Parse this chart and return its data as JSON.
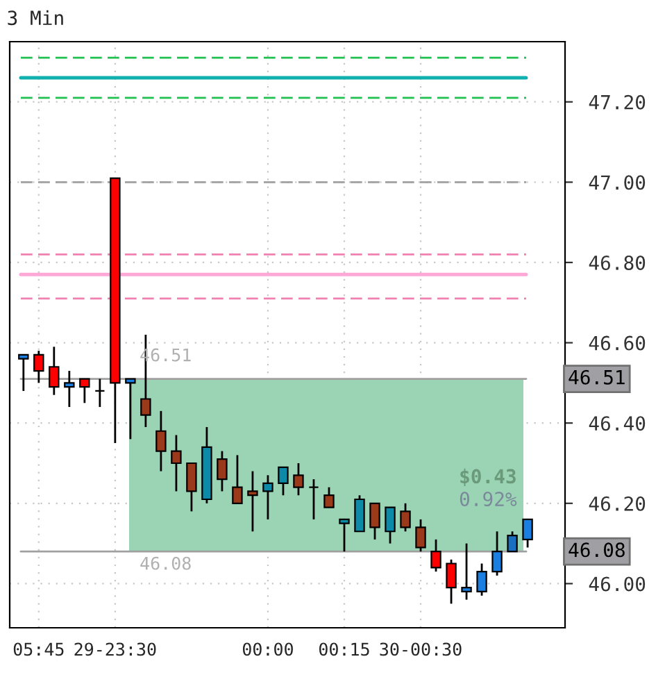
{
  "chart_data": {
    "type": "candlestick",
    "title": "3 Min",
    "categories": [
      null,
      "05:45",
      null,
      null,
      null,
      null,
      "29-23:30",
      null,
      null,
      null,
      null,
      null,
      null,
      null,
      null,
      null,
      "00:00",
      null,
      null,
      null,
      null,
      "00:15",
      null,
      null,
      null,
      null,
      "30-00:30",
      null,
      null,
      null,
      null,
      null,
      null,
      null
    ],
    "ohlc": [
      [
        46.56,
        46.57,
        46.48,
        46.57
      ],
      [
        46.57,
        46.58,
        46.5,
        46.53
      ],
      [
        46.54,
        46.59,
        46.47,
        46.49
      ],
      [
        46.49,
        46.53,
        46.44,
        46.5
      ],
      [
        46.51,
        46.51,
        46.45,
        46.49
      ],
      [
        46.48,
        46.51,
        46.44,
        46.48
      ],
      [
        47.01,
        47.01,
        46.35,
        46.5
      ],
      [
        46.5,
        46.51,
        46.36,
        46.51
      ],
      [
        46.46,
        46.62,
        46.39,
        46.42
      ],
      [
        46.38,
        46.43,
        46.28,
        46.33
      ],
      [
        46.33,
        46.37,
        46.23,
        46.3
      ],
      [
        46.3,
        46.3,
        46.18,
        46.23
      ],
      [
        46.21,
        46.39,
        46.2,
        46.34
      ],
      [
        46.31,
        46.33,
        46.23,
        46.26
      ],
      [
        46.24,
        46.32,
        46.2,
        46.2
      ],
      [
        46.23,
        46.28,
        46.13,
        46.22
      ],
      [
        46.23,
        46.27,
        46.16,
        46.25
      ],
      [
        46.25,
        46.29,
        46.22,
        46.29
      ],
      [
        46.27,
        46.3,
        46.22,
        46.24
      ],
      [
        46.24,
        46.26,
        46.16,
        46.24
      ],
      [
        46.22,
        46.24,
        46.19,
        46.19
      ],
      [
        46.15,
        46.16,
        46.08,
        46.16
      ],
      [
        46.13,
        46.22,
        46.13,
        46.21
      ],
      [
        46.2,
        46.2,
        46.11,
        46.14
      ],
      [
        46.13,
        46.19,
        46.1,
        46.19
      ],
      [
        46.18,
        46.2,
        46.13,
        46.14
      ],
      [
        46.14,
        46.16,
        46.08,
        46.09
      ],
      [
        46.08,
        46.11,
        46.03,
        46.04
      ],
      [
        46.05,
        46.06,
        45.95,
        45.99
      ],
      [
        45.98,
        46.1,
        45.96,
        45.99
      ],
      [
        45.98,
        46.05,
        45.97,
        46.03
      ],
      [
        46.03,
        46.13,
        46.02,
        46.08
      ],
      [
        46.08,
        46.13,
        46.08,
        46.12
      ],
      [
        46.11,
        46.16,
        46.09,
        46.16
      ]
    ],
    "colors": [
      "#1a7fe0",
      "#ff0000",
      "#ff0000",
      "#1a7fe0",
      "#ff0000",
      "#000000",
      "#ff0000",
      "#1a7fe0",
      "#9a3a1a",
      "#9a3a1a",
      "#9a3a1a",
      "#9a3a1a",
      "#0d8aa8",
      "#9a3a1a",
      "#9a3a1a",
      "#9a3a1a",
      "#0d8aa8",
      "#0d8aa8",
      "#9a3a1a",
      "#000000",
      "#9a3a1a",
      "#0d8aa8",
      "#0d8aa8",
      "#9a3a1a",
      "#0d8aa8",
      "#9a3a1a",
      "#9a3a1a",
      "#ff0000",
      "#ff0000",
      "#1a7fe0",
      "#1a7fe0",
      "#1a7fe0",
      "#1a6fc0",
      "#1a7fe0"
    ],
    "ylim": [
      45.89,
      47.35
    ],
    "yticks": [
      {
        "value": 46.0,
        "label": "46.00"
      },
      {
        "value": 46.2,
        "label": "46.20"
      },
      {
        "value": 46.4,
        "label": "46.40"
      },
      {
        "value": 46.6,
        "label": "46.60"
      },
      {
        "value": 46.8,
        "label": "46.80"
      },
      {
        "value": 47.0,
        "label": "47.00"
      },
      {
        "value": 47.2,
        "label": "47.20"
      }
    ],
    "grid": true,
    "ref_lines": [
      {
        "axis": "y",
        "value": 47.31,
        "color": "#20c050",
        "line_style": "dashed"
      },
      {
        "axis": "y",
        "value": 47.26,
        "color": "#10b0b0",
        "line_style": "solid"
      },
      {
        "axis": "y",
        "value": 47.21,
        "color": "#20c050",
        "line_style": "dashed"
      },
      {
        "axis": "y",
        "value": 47.0,
        "color": "#a0a0a0",
        "line_style": "dashed"
      },
      {
        "axis": "y",
        "value": 46.82,
        "color": "#f080b0",
        "line_style": "dashed"
      },
      {
        "axis": "y",
        "value": 46.77,
        "color": "#ffa8d8",
        "line_style": "solid"
      },
      {
        "axis": "y",
        "value": 46.71,
        "color": "#f080b0",
        "line_style": "dashed"
      },
      {
        "axis": "y",
        "value": 46.51,
        "label": "46.51",
        "color": "#a0a0a0",
        "line_style": "solid"
      },
      {
        "axis": "y",
        "value": 46.08,
        "label": "46.08",
        "color": "#a0a0a0",
        "line_style": "solid"
      }
    ],
    "bands": [
      {
        "axis": "y",
        "from": 46.08,
        "to": 46.51,
        "label": "$0.43",
        "color": "#9bd4b4"
      }
    ],
    "annotations": [
      "0.92%"
    ]
  }
}
